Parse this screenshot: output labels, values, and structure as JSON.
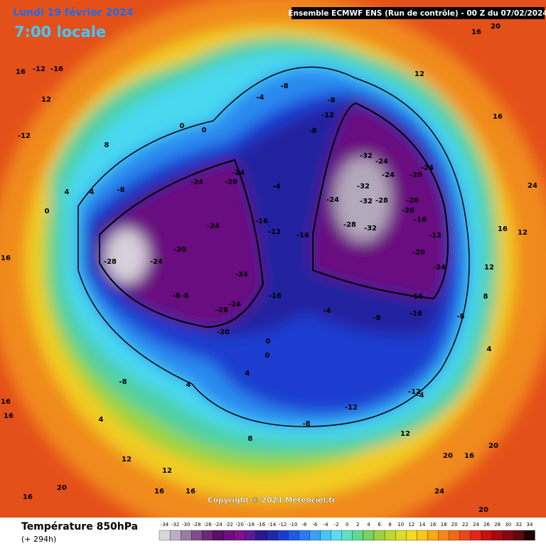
{
  "header": {
    "date": "Lundi 19 février 2024",
    "time": "7:00 locale",
    "model": "Ensemble ECMWF ENS  (Run de contrôle)  - 00 Z du 07/02/2024"
  },
  "copyright": "Copyright © 2024 Meteociel.fr",
  "legend": {
    "title": "Température 850hPa",
    "subtitle": "(+ 294h)",
    "ticks": [
      -34,
      -32,
      -30,
      -28,
      -26,
      -24,
      -22,
      -20,
      -18,
      -16,
      -14,
      -12,
      -10,
      -8,
      -6,
      -4,
      -2,
      0,
      2,
      4,
      6,
      8,
      10,
      12,
      14,
      16,
      18,
      20,
      22,
      24,
      26,
      28,
      30,
      32,
      34
    ],
    "colors": [
      "#d8d8d8",
      "#bcaec4",
      "#9c7aa8",
      "#7e4e8c",
      "#6a2a78",
      "#5a0f68",
      "#6e0e80",
      "#82108e",
      "#5a1a9a",
      "#2a1a8c",
      "#1c2aa8",
      "#1c3cd0",
      "#1e5ae6",
      "#2a7af0",
      "#3aa0f4",
      "#48c4f4",
      "#5adcf0",
      "#60e0c0",
      "#60d890",
      "#7ad060",
      "#9ad240",
      "#bcd830",
      "#dcdc28",
      "#f0dc20",
      "#f8c818",
      "#f8a818",
      "#f48818",
      "#f06818",
      "#e84818",
      "#e02818",
      "#c81010",
      "#a80810",
      "#880810",
      "#600810",
      "#200000"
    ]
  },
  "map_labels": [
    "-28",
    "-24",
    "-20",
    "-24",
    "-20",
    "-24",
    "-24",
    "-16",
    "-12",
    "-16",
    "-24",
    "-24",
    "-28",
    "-20",
    "-16",
    "-8",
    "-8",
    "-8",
    "-4",
    "-8",
    "-4",
    "-8",
    "-12",
    "-8",
    "-32",
    "-24",
    "-24",
    "-24",
    "-32",
    "-32",
    "-28",
    "-28",
    "-32",
    "-20",
    "-24",
    "-20",
    "-20",
    "-16",
    "-12",
    "-20",
    "-24",
    "-16",
    "-16",
    "-8",
    "-4",
    "-8",
    "-12",
    "-4",
    "-12",
    "-8",
    "0",
    "0",
    "4",
    "4",
    "8",
    "12",
    "12",
    "16",
    "16",
    "20",
    "16",
    "24",
    "20",
    "20",
    "16",
    "20",
    "12",
    "12",
    "16",
    "20",
    "16",
    "24",
    "16",
    "12",
    "12",
    "8",
    "4",
    "16",
    "16",
    "16",
    "-12",
    "-12",
    "-16",
    "16",
    "12",
    "8",
    "0",
    "0",
    "-8",
    "4",
    "4",
    "0",
    "4"
  ]
}
